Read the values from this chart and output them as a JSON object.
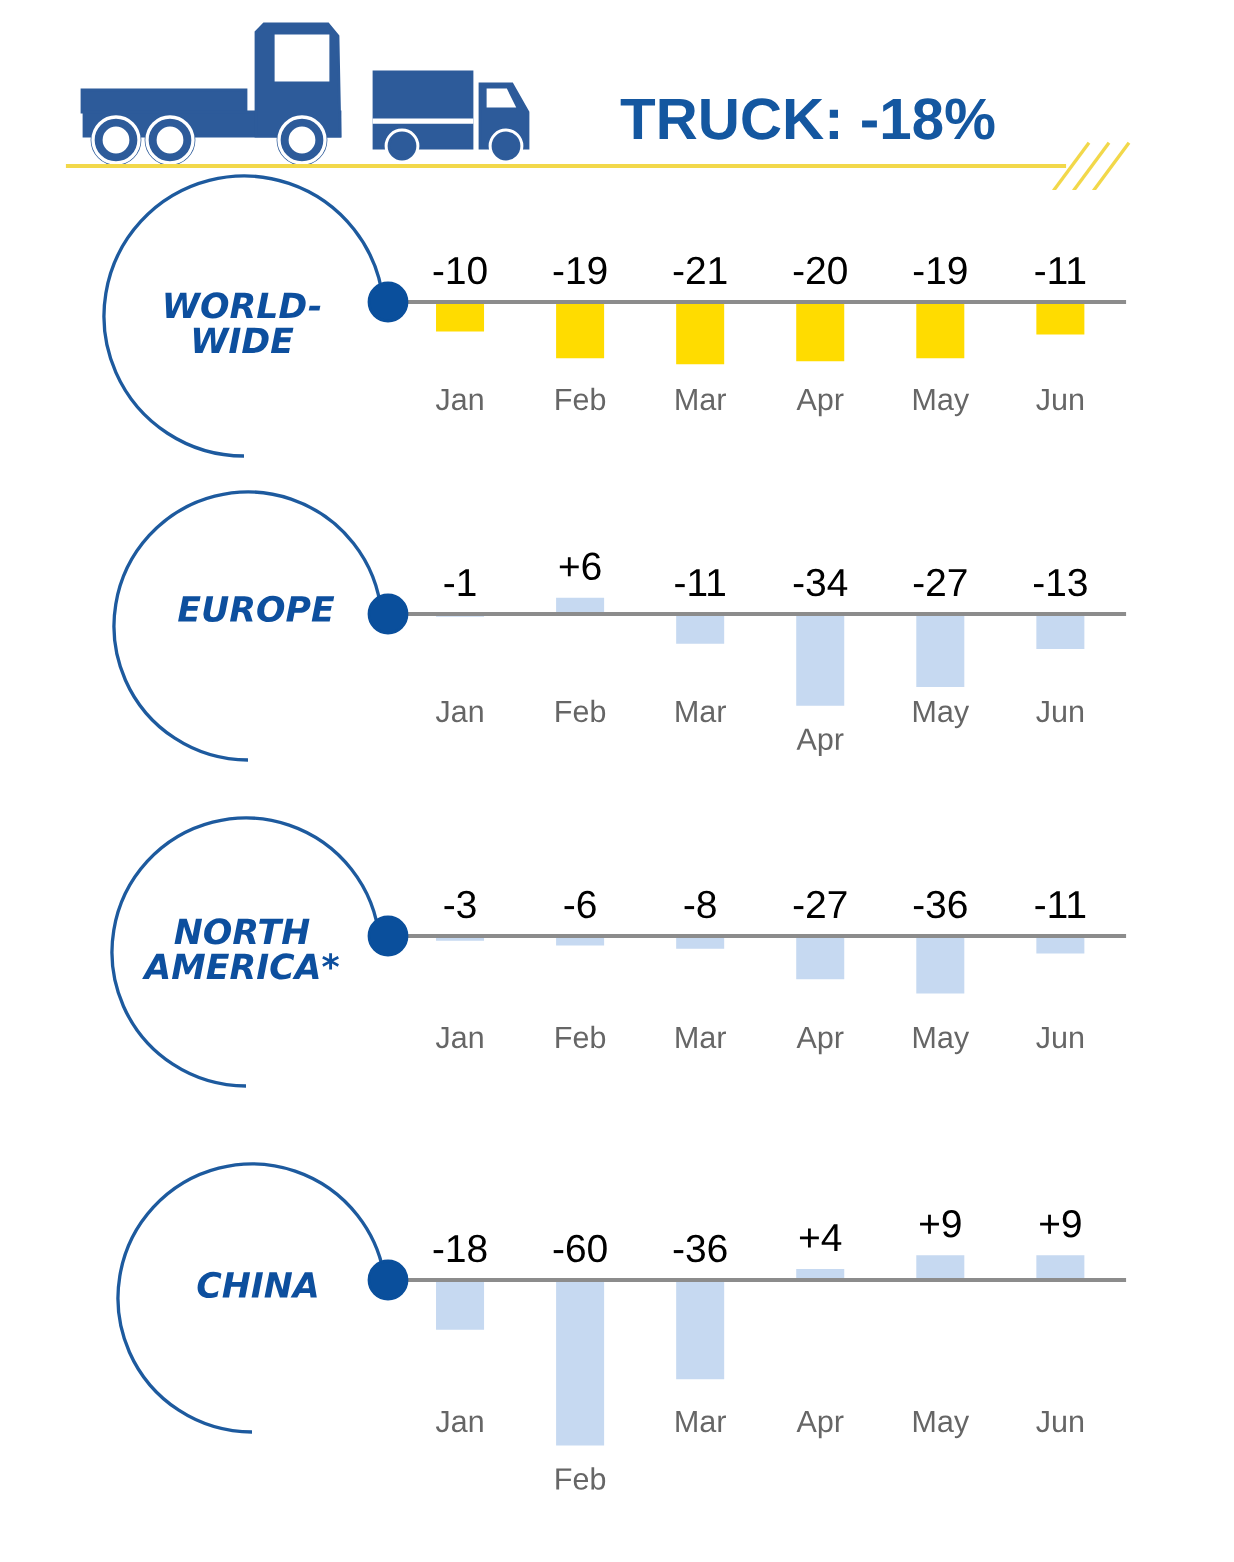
{
  "chart_data": [
    {
      "type": "other",
      "title": "TRUCK: -18%"
    },
    {
      "type": "bar",
      "title": "WORLD-\nWIDE",
      "categories": [
        "Jan",
        "Feb",
        "Mar",
        "Apr",
        "May",
        "Jun"
      ],
      "values": [
        -10,
        -19,
        -21,
        -20,
        -19,
        -11
      ],
      "data_labels": true,
      "color": "#ffdc00",
      "tick_labels": "x"
    },
    {
      "type": "bar",
      "title": "EUROPE",
      "categories": [
        "Jan",
        "Feb",
        "Mar",
        "Apr",
        "May",
        "Jun"
      ],
      "values": [
        -1,
        6,
        -11,
        -34,
        -27,
        -13
      ],
      "value_labels": [
        "-1",
        "+6",
        "-11",
        "-34",
        "-27",
        "-13"
      ],
      "color": "#c6d9f1",
      "tick_labels": "x"
    },
    {
      "type": "bar",
      "title": "NORTH\nAMERICA*",
      "categories": [
        "Jan",
        "Feb",
        "Mar",
        "Apr",
        "May",
        "Jun"
      ],
      "values": [
        -3,
        -6,
        -8,
        -27,
        -36,
        -11
      ],
      "data_labels": true,
      "color": "#c6d9f1",
      "tick_labels": "x"
    },
    {
      "type": "bar",
      "title": "CHINA",
      "categories": [
        "Jan",
        "Feb",
        "Mar",
        "Apr",
        "May",
        "Jun"
      ],
      "values": [
        -18,
        -60,
        -36,
        4,
        9,
        9
      ],
      "value_labels": [
        "-18",
        "-60",
        "-36",
        "+4",
        "+9",
        "+9"
      ],
      "color": "#c6d9f1",
      "tick_labels": "x"
    }
  ]
}
